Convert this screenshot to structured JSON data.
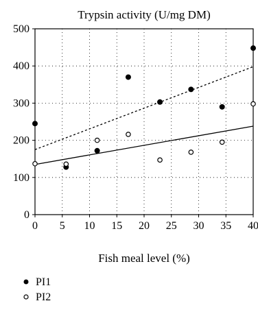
{
  "chart_data": {
    "type": "scatter",
    "title": "Trypsin activity (U/mg DM)",
    "xlabel": "Fish meal level (%)",
    "ylabel": "",
    "xlim": [
      0,
      40
    ],
    "ylim": [
      0,
      500
    ],
    "x_ticks": [
      0,
      5,
      10,
      15,
      20,
      25,
      30,
      35,
      40
    ],
    "y_ticks": [
      0,
      100,
      200,
      300,
      400,
      500
    ],
    "grid": true,
    "legend_position": "bottom-left",
    "series": [
      {
        "name": "PI1",
        "marker": "filled-circle",
        "color": "#000000",
        "x": [
          0,
          5.7,
          11.4,
          17.1,
          22.9,
          28.6,
          34.3,
          40
        ],
        "y": [
          245,
          128,
          172,
          370,
          303,
          337,
          290,
          448
        ],
        "trendline": {
          "style": "dotted",
          "x": [
            0,
            40
          ],
          "y": [
            175,
            398
          ]
        }
      },
      {
        "name": "PI2",
        "marker": "open-circle",
        "color": "#000000",
        "x": [
          0,
          5.7,
          11.4,
          17.1,
          22.9,
          28.6,
          34.3,
          40
        ],
        "y": [
          137,
          136,
          200,
          216,
          147,
          168,
          195,
          298
        ],
        "trendline": {
          "style": "solid",
          "x": [
            0,
            40
          ],
          "y": [
            135,
            238
          ]
        }
      }
    ]
  }
}
